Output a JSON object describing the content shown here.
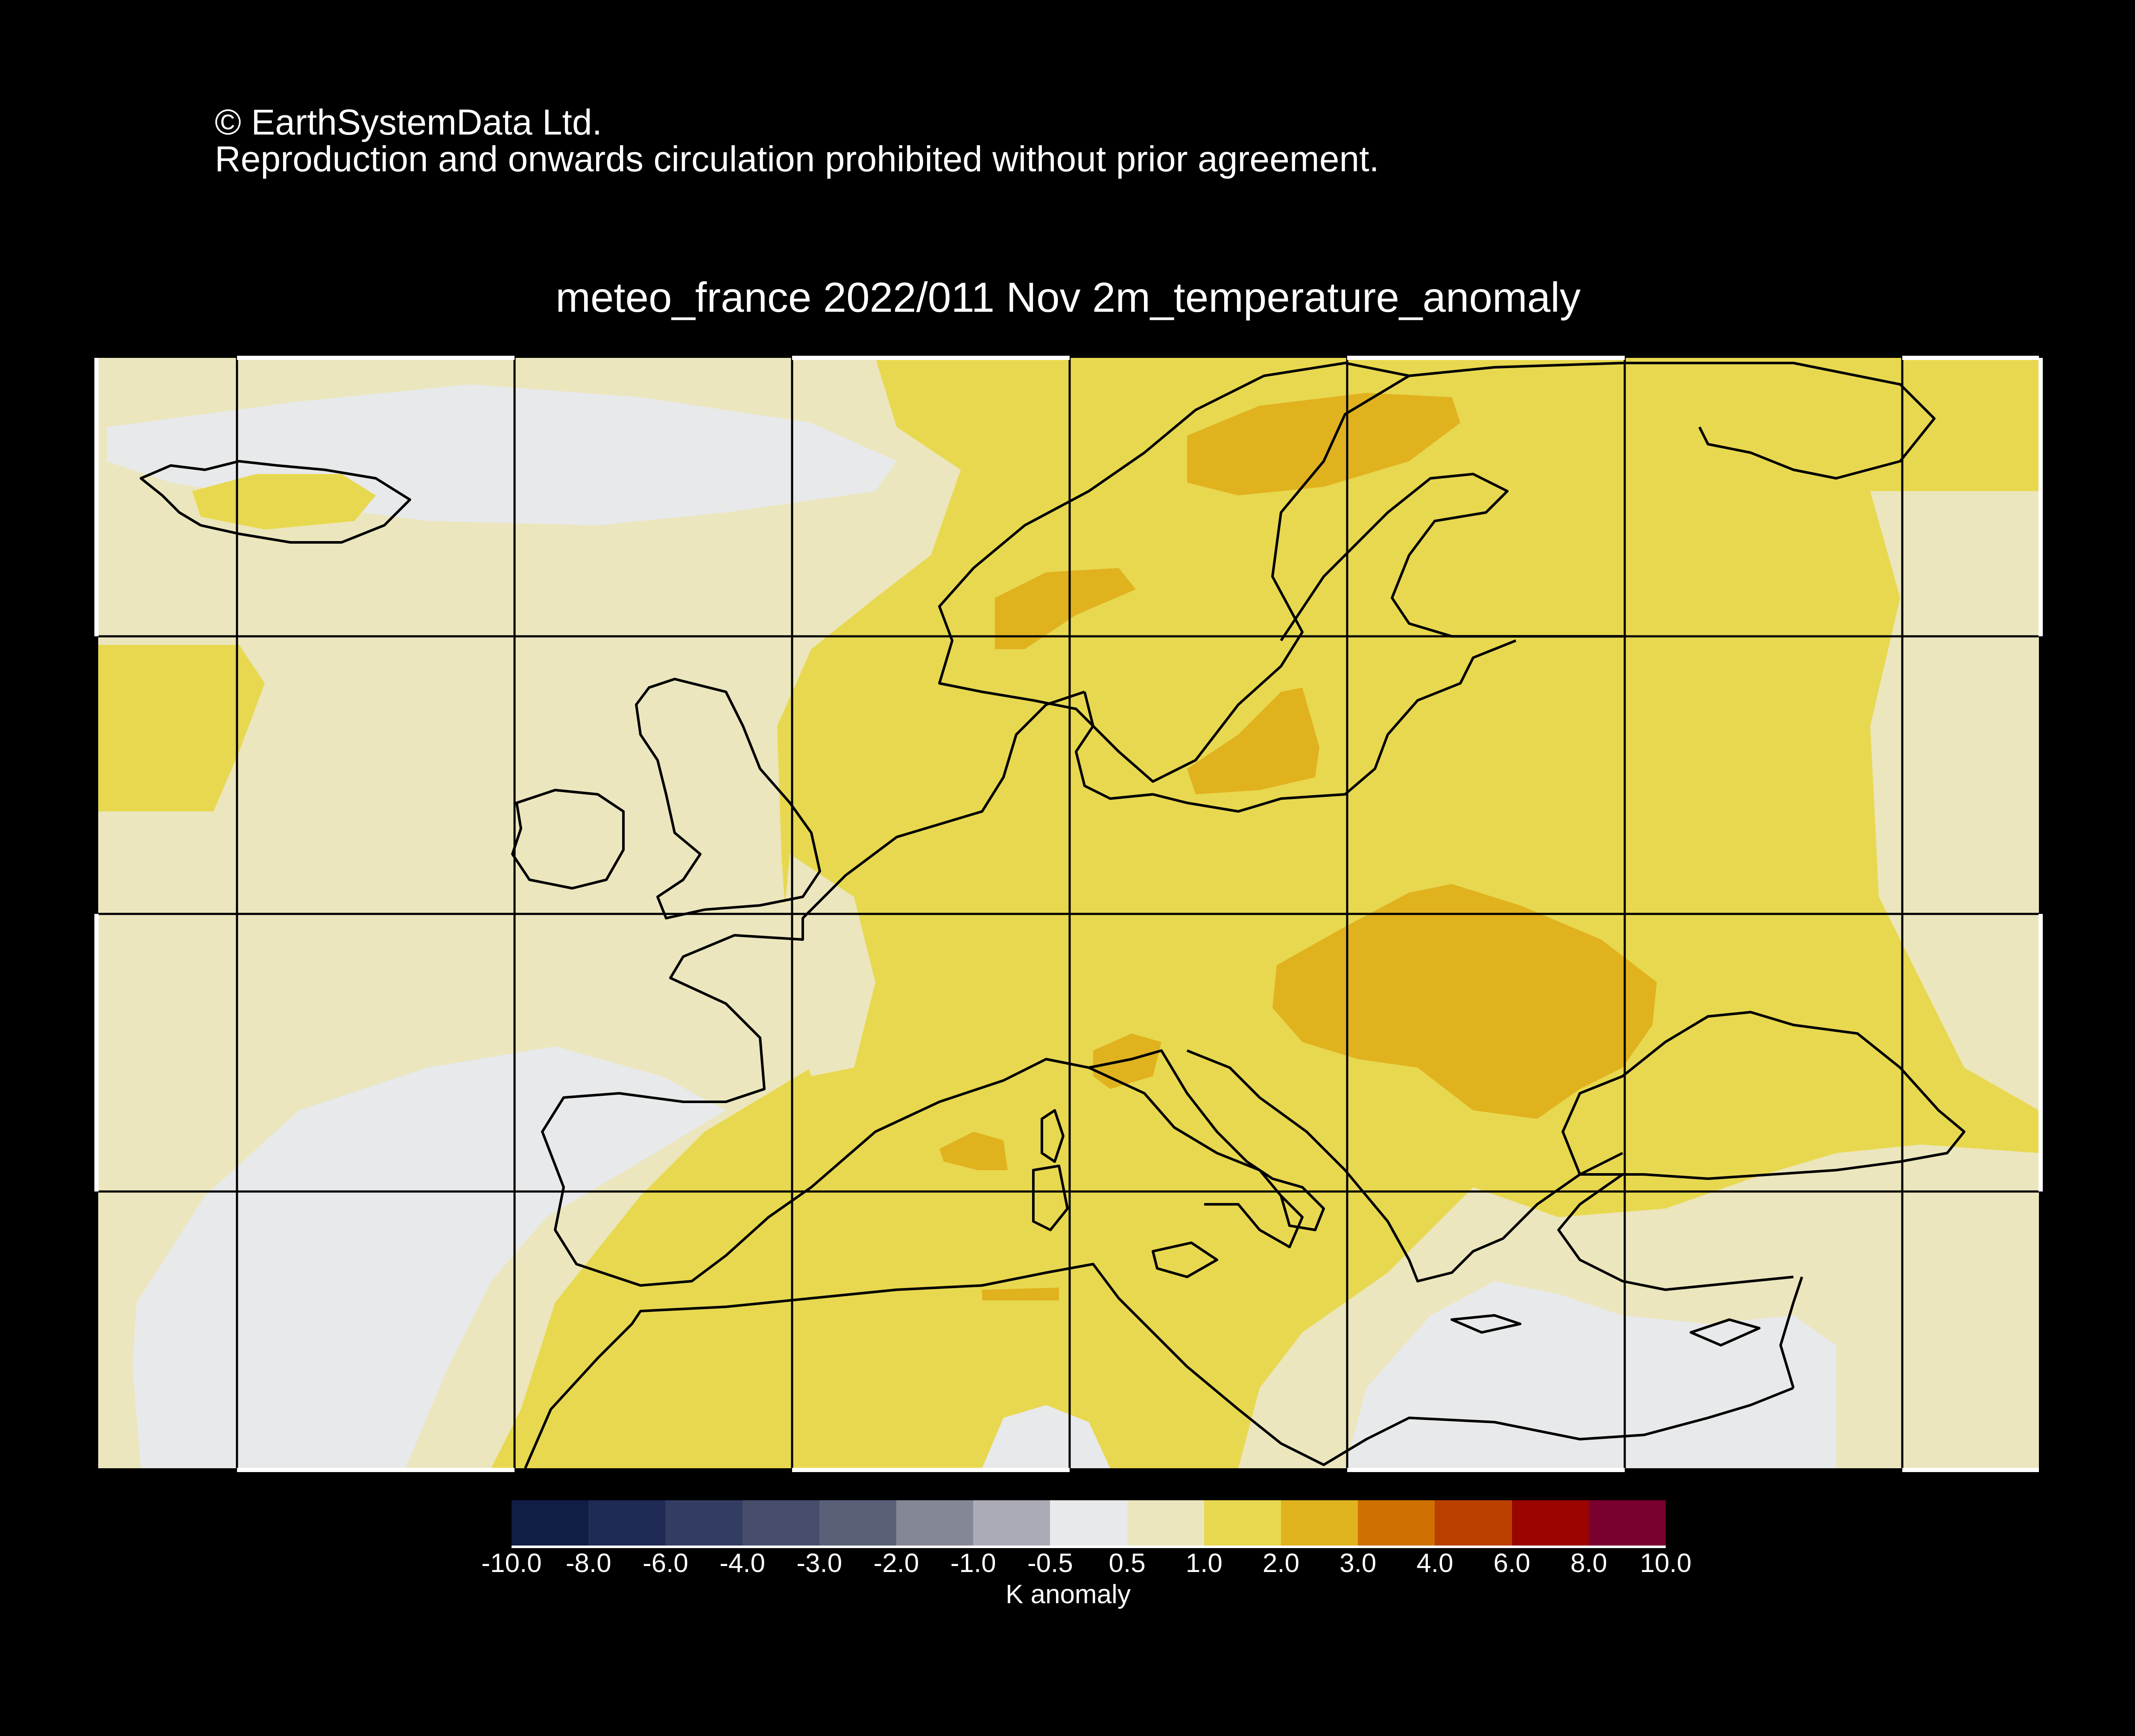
{
  "copyright": {
    "line1": "© EarthSystemData Ltd.",
    "line2": "Reproduction and onwards circulation prohibited without prior agreement."
  },
  "title": "meteo_france 2022/011 Nov 2m_temperature_anomaly",
  "colorbar": {
    "label": "K anomaly",
    "ticks": [
      "-10.0",
      "-8.0",
      "-6.0",
      "-4.0",
      "-3.0",
      "-2.0",
      "-1.0",
      "-0.5",
      "0.5",
      "1.0",
      "2.0",
      "3.0",
      "4.0",
      "6.0",
      "8.0",
      "10.0"
    ],
    "colors": [
      "#101d45",
      "#1f2a55",
      "#333c62",
      "#474e6c",
      "#5b6079",
      "#848795",
      "#aaabb4",
      "#e8e9ea",
      "#ebe6bd",
      "#e8d84f",
      "#e0b21e",
      "#cf7000",
      "#bb4000",
      "#9a0500",
      "#7a0030"
    ]
  },
  "map": {
    "region": "Europe",
    "colors": {
      "anom_neg_0_5_to_0_5": "#e8e9ea",
      "anom_0_5_to_1": "#ebe6bd",
      "anom_1_to_2": "#e8d84f",
      "anom_2_to_3": "#e0b21e",
      "coastline": "#000000",
      "gridline": "#000000",
      "frame_tick": "#ffffff"
    }
  }
}
